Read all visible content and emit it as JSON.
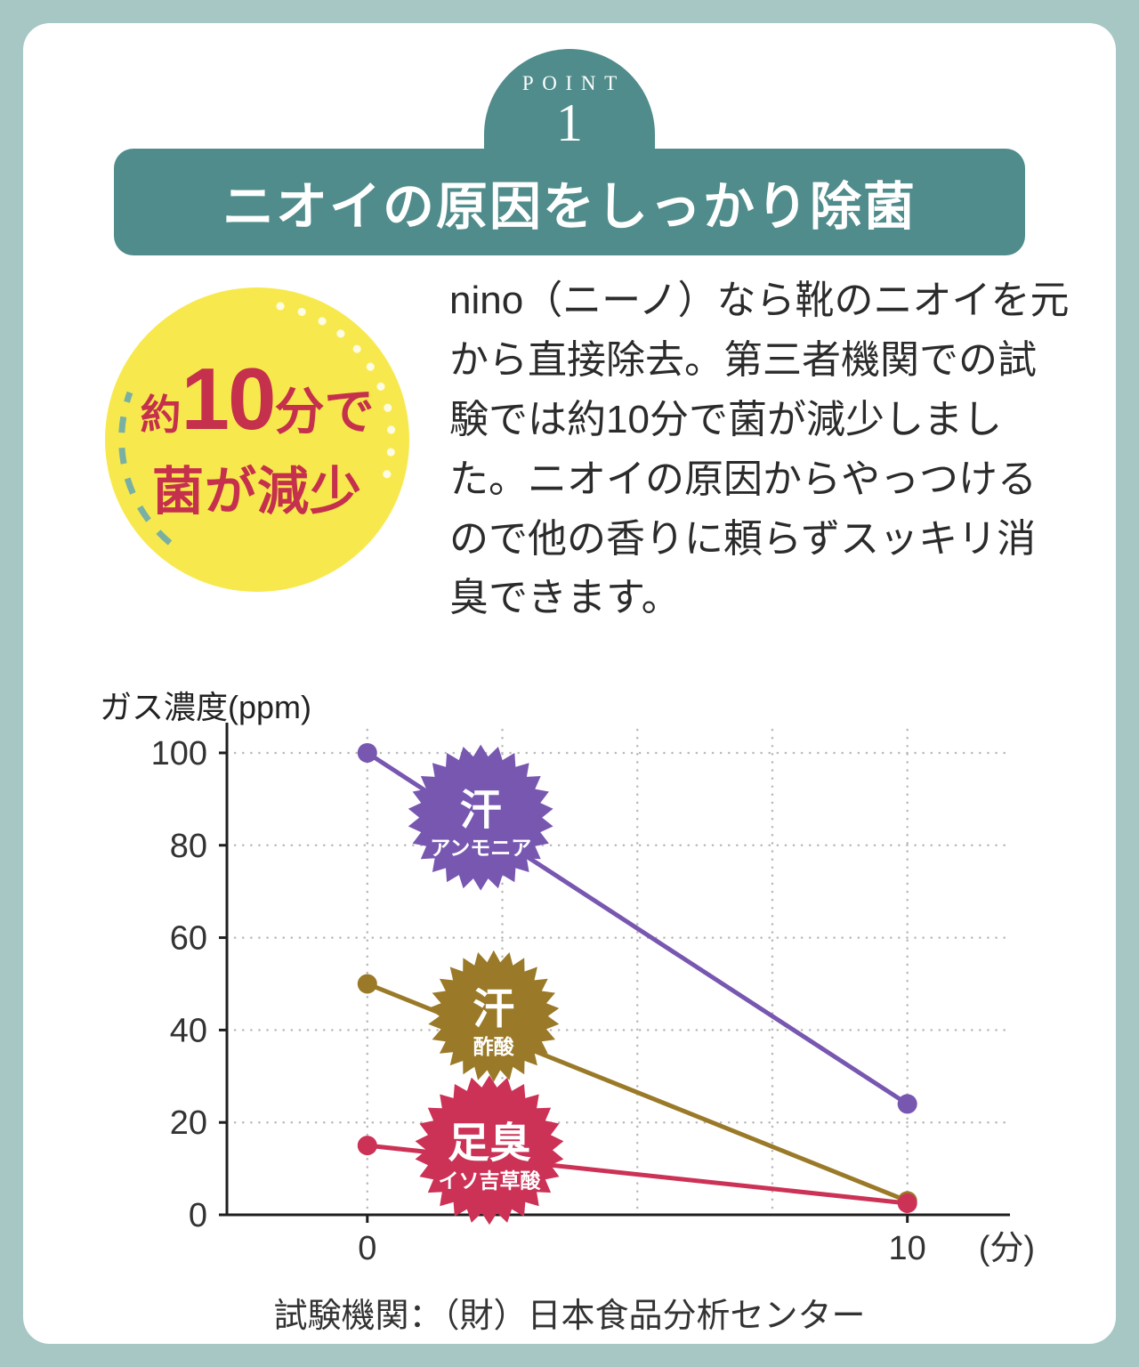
{
  "theme": {
    "frame": "#a6c7c4",
    "teal": "#4f8c8b",
    "yellow": "#f7e94d",
    "red": "#c5304d",
    "text": "#2b2b2b"
  },
  "point_badge": {
    "kicker": "POINT",
    "number": "1"
  },
  "header": {
    "title": "ニオイの原因をしっかり除菌"
  },
  "highlight_badge": {
    "prefix": "約",
    "number": "10",
    "suffix": "分で",
    "line2": "菌が減少"
  },
  "body": {
    "text": "nino（ニーノ）なら靴のニオイを元から直接除去。第三者機関での試験では約10分で菌が減少しました。ニオイの原因からやっつけるので他の香りに頼らずスッキリ消臭できます。"
  },
  "chart_data": {
    "type": "line",
    "title": "",
    "ylabel": "ガス濃度(ppm)",
    "x_unit": "(分)",
    "x": [
      0,
      10
    ],
    "xticks": [
      0,
      10
    ],
    "yticks": [
      0,
      20,
      40,
      60,
      80,
      100
    ],
    "ylim": [
      0,
      105
    ],
    "xlim": [
      -2.6,
      11.9
    ],
    "grid": "dotted",
    "grid_x": [
      0,
      2.5,
      5,
      7.5,
      10
    ],
    "legend_position": "on-line-badges",
    "series": [
      {
        "name": "汗（アンモニア）",
        "badge_main": "汗",
        "badge_sub": "アンモニア",
        "color": "#7757b0",
        "values": [
          100,
          24
        ],
        "badge_at": {
          "x": 2.1,
          "y": 86
        },
        "badge_r": 82
      },
      {
        "name": "汗（酢酸）",
        "badge_main": "汗",
        "badge_sub": "酢酸",
        "color": "#9a7a28",
        "values": [
          50,
          3
        ],
        "badge_at": {
          "x": 2.34,
          "y": 43
        },
        "badge_r": 74
      },
      {
        "name": "足臭（イソ吉草酸）",
        "badge_main": "足臭",
        "badge_sub": "イソ吉草酸",
        "color": "#cc3156",
        "values": [
          15,
          2.5
        ],
        "badge_at": {
          "x": 2.26,
          "y": 14
        },
        "badge_r": 84
      }
    ],
    "source": "試験機関：（財）日本食品分析センター"
  }
}
